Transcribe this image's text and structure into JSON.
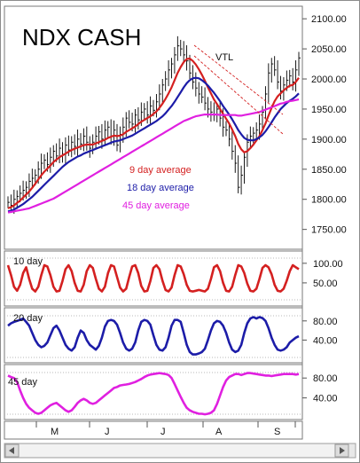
{
  "chart_data": [
    {
      "type": "line",
      "title": "NDX CASH",
      "annotation": "VTL",
      "x_labels": [
        "M",
        "J",
        "J",
        "A",
        "S"
      ],
      "ylim": [
        1720,
        2115
      ],
      "y_ticks": [
        "2100.00",
        "2050.00",
        "2000.00",
        "1950.00",
        "1900.00",
        "1850.00",
        "1800.00",
        "1750.00"
      ],
      "price_close": [
        1795,
        1790,
        1800,
        1805,
        1810,
        1815,
        1820,
        1830,
        1835,
        1840,
        1850,
        1860,
        1865,
        1858,
        1870,
        1880,
        1872,
        1885,
        1875,
        1890,
        1882,
        1895,
        1888,
        1900,
        1892,
        1905,
        1895,
        1885,
        1895,
        1905,
        1912,
        1900,
        1915,
        1920,
        1905,
        1915,
        1890,
        1908,
        1920,
        1935,
        1928,
        1925,
        1940,
        1932,
        1945,
        1950,
        1940,
        1955,
        1948,
        1962,
        1975,
        1990,
        2000,
        2015,
        2025,
        2040,
        2055,
        2050,
        2040,
        2030,
        2010,
        1995,
        1985,
        1975,
        1970,
        1960,
        1950,
        1945,
        1940,
        1950,
        1935,
        1920,
        1915,
        1900,
        1880,
        1860,
        1820,
        1840,
        1870,
        1895,
        1905,
        1910,
        1915,
        1925,
        1945,
        1975,
        2010,
        2025,
        2015,
        1995,
        1980,
        1990,
        1998,
        2005,
        1995,
        2015,
        2035
      ],
      "series": [
        {
          "name": "9 day average",
          "color": "#d42020",
          "values": [
            1785,
            1787,
            1790,
            1794,
            1798,
            1803,
            1808,
            1813,
            1819,
            1826,
            1833,
            1840,
            1846,
            1851,
            1856,
            1862,
            1866,
            1870,
            1873,
            1876,
            1879,
            1882,
            1884,
            1886,
            1888,
            1890,
            1891,
            1891,
            1891,
            1893,
            1895,
            1897,
            1899,
            1902,
            1904,
            1906,
            1905,
            1906,
            1908,
            1912,
            1915,
            1918,
            1921,
            1925,
            1929,
            1932,
            1935,
            1938,
            1942,
            1946,
            1952,
            1959,
            1967,
            1976,
            1986,
            1998,
            2010,
            2020,
            2028,
            2033,
            2034,
            2030,
            2024,
            2016,
            2007,
            1997,
            1986,
            1976,
            1966,
            1958,
            1950,
            1942,
            1934,
            1926,
            1916,
            1905,
            1892,
            1883,
            1878,
            1880,
            1885,
            1891,
            1898,
            1905,
            1915,
            1926,
            1939,
            1952,
            1963,
            1971,
            1976,
            1981,
            1985,
            1989,
            1990,
            1995,
            2002
          ]
        },
        {
          "name": "18 day average",
          "color": "#1c1ca8",
          "values": [
            1780,
            1781,
            1783,
            1786,
            1789,
            1792,
            1796,
            1800,
            1804,
            1809,
            1814,
            1819,
            1824,
            1829,
            1834,
            1839,
            1844,
            1849,
            1854,
            1858,
            1862,
            1865,
            1868,
            1871,
            1873,
            1876,
            1878,
            1880,
            1882,
            1884,
            1886,
            1888,
            1890,
            1892,
            1894,
            1896,
            1897,
            1898,
            1900,
            1902,
            1904,
            1906,
            1909,
            1912,
            1915,
            1918,
            1921,
            1924,
            1927,
            1930,
            1934,
            1938,
            1943,
            1949,
            1955,
            1962,
            1970,
            1978,
            1986,
            1993,
            1998,
            2001,
            2002,
            2001,
            1998,
            1994,
            1989,
            1983,
            1977,
            1970,
            1963,
            1955,
            1948,
            1941,
            1933,
            1924,
            1915,
            1908,
            1902,
            1899,
            1898,
            1898,
            1900,
            1903,
            1907,
            1913,
            1920,
            1928,
            1936,
            1943,
            1950,
            1955,
            1960,
            1964,
            1967,
            1971,
            1976
          ]
        },
        {
          "name": "45 day average",
          "color": "#e020e0",
          "values": [
            1778,
            1779,
            1780,
            1781,
            1782,
            1783,
            1784,
            1785,
            1787,
            1789,
            1791,
            1793,
            1795,
            1797,
            1799,
            1801,
            1804,
            1807,
            1810,
            1813,
            1816,
            1819,
            1822,
            1825,
            1828,
            1831,
            1834,
            1837,
            1840,
            1843,
            1846,
            1849,
            1852,
            1855,
            1858,
            1861,
            1864,
            1867,
            1870,
            1873,
            1876,
            1879,
            1882,
            1885,
            1888,
            1891,
            1894,
            1897,
            1900,
            1903,
            1906,
            1909,
            1912,
            1915,
            1918,
            1921,
            1924,
            1927,
            1930,
            1932,
            1934,
            1936,
            1938,
            1939,
            1940,
            1941,
            1941,
            1941,
            1941,
            1941,
            1940,
            1940,
            1940,
            1940,
            1940,
            1940,
            1939,
            1939,
            1940,
            1941,
            1942,
            1943,
            1944,
            1945,
            1947,
            1949,
            1951,
            1953,
            1955,
            1957,
            1959,
            1960,
            1962,
            1963,
            1964,
            1965,
            1966
          ]
        }
      ]
    },
    {
      "type": "line",
      "title": "10 day",
      "ylim": [
        0,
        120
      ],
      "y_ticks": [
        "100.00",
        "50.00"
      ],
      "series": [
        {
          "name": "10 day",
          "color": "#d42020",
          "values": [
            95,
            70,
            40,
            30,
            45,
            75,
            90,
            60,
            35,
            28,
            40,
            70,
            95,
            92,
            70,
            40,
            28,
            30,
            55,
            85,
            95,
            80,
            50,
            30,
            28,
            45,
            80,
            95,
            88,
            60,
            35,
            28,
            40,
            75,
            95,
            92,
            65,
            38,
            28,
            35,
            65,
            92,
            95,
            75,
            42,
            28,
            30,
            55,
            88,
            95,
            85,
            55,
            32,
            28,
            38,
            70,
            95,
            92,
            72,
            45,
            30,
            28,
            30,
            32,
            30,
            28,
            35,
            60,
            90,
            95,
            80,
            50,
            30,
            28,
            40,
            70,
            95,
            92,
            75,
            48,
            30,
            28,
            35,
            60,
            88,
            95,
            90,
            72,
            45,
            30,
            28,
            35,
            55,
            80,
            95,
            90,
            85
          ]
        }
      ]
    },
    {
      "type": "line",
      "title": "20 day",
      "ylim": [
        0,
        100
      ],
      "y_ticks": [
        "80.00",
        "40.00"
      ],
      "series": [
        {
          "name": "20 day",
          "color": "#1c1ca8",
          "values": [
            70,
            75,
            78,
            80,
            82,
            85,
            78,
            70,
            55,
            40,
            30,
            25,
            28,
            35,
            50,
            65,
            70,
            60,
            45,
            30,
            22,
            18,
            25,
            45,
            60,
            55,
            40,
            30,
            25,
            20,
            28,
            45,
            68,
            80,
            82,
            80,
            72,
            55,
            35,
            22,
            18,
            22,
            35,
            60,
            78,
            82,
            80,
            72,
            50,
            30,
            20,
            18,
            25,
            45,
            70,
            82,
            82,
            78,
            55,
            30,
            15,
            10,
            10,
            12,
            15,
            22,
            40,
            60,
            75,
            80,
            78,
            70,
            55,
            35,
            20,
            15,
            18,
            30,
            55,
            75,
            85,
            88,
            85,
            88,
            86,
            80,
            65,
            45,
            30,
            20,
            18,
            20,
            25,
            35,
            40,
            45,
            48
          ]
        }
      ]
    },
    {
      "type": "line",
      "title": "45 day",
      "ylim": [
        0,
        100
      ],
      "y_ticks": [
        "80.00",
        "40.00"
      ],
      "series": [
        {
          "name": "45 day",
          "color": "#e020e0",
          "values": [
            85,
            82,
            80,
            72,
            55,
            40,
            28,
            20,
            15,
            10,
            8,
            10,
            15,
            20,
            25,
            28,
            30,
            25,
            20,
            15,
            12,
            15,
            22,
            30,
            35,
            38,
            35,
            30,
            28,
            30,
            35,
            40,
            45,
            50,
            55,
            60,
            62,
            65,
            66,
            67,
            68,
            70,
            72,
            75,
            78,
            82,
            85,
            87,
            88,
            89,
            90,
            89,
            88,
            86,
            80,
            68,
            55,
            42,
            30,
            20,
            15,
            12,
            10,
            8,
            8,
            7,
            8,
            10,
            15,
            28,
            45,
            62,
            75,
            82,
            85,
            88,
            88,
            86,
            88,
            90,
            90,
            89,
            88,
            87,
            86,
            85,
            85,
            84,
            85,
            86,
            87,
            88,
            88,
            88,
            88,
            87,
            88
          ]
        }
      ]
    }
  ],
  "legend": {
    "ma9": "9 day average",
    "ma18": "18 day average",
    "ma45": "45 day average"
  }
}
